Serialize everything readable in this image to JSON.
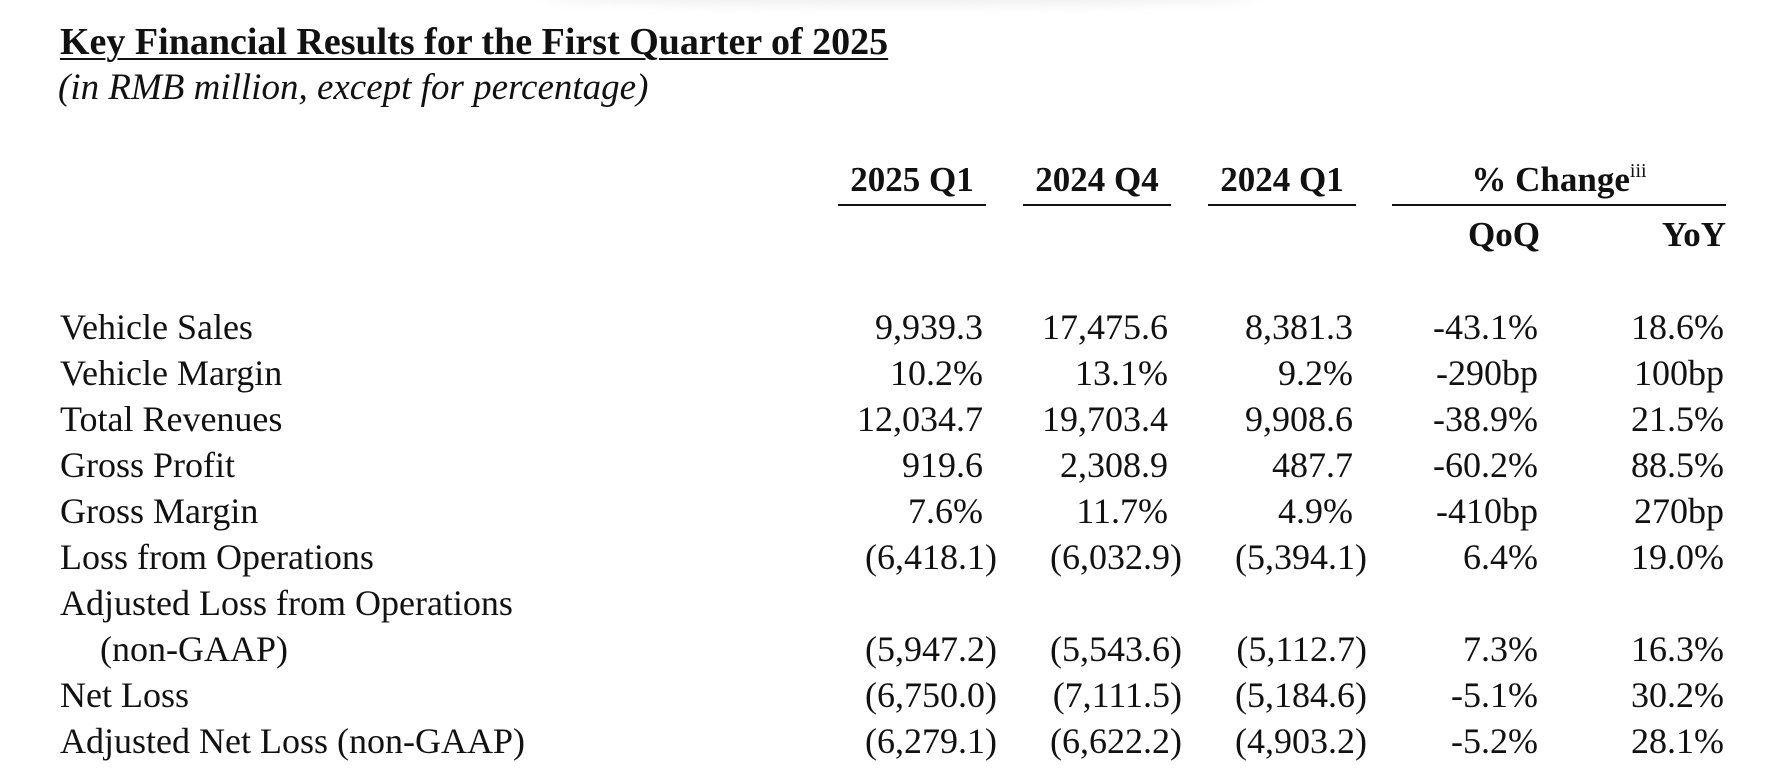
{
  "title": "Key Financial Results for the First Quarter of 2025",
  "subtitle": "(in RMB million, except for percentage)",
  "columns": {
    "c1": "2025 Q1",
    "c2": "2024 Q4",
    "c3": "2024 Q1",
    "change": "% Change",
    "change_note": "iii",
    "qoq": "QoQ",
    "yoy": "YoY"
  },
  "rows": [
    {
      "label": "Vehicle Sales",
      "c1": "9,939.3",
      "c2": "17,475.6",
      "c3": "8,381.3",
      "qoq": "-43.1%",
      "yoy": "18.6%"
    },
    {
      "label": "Vehicle Margin",
      "c1": "10.2%",
      "c2": "13.1%",
      "c3": "9.2%",
      "qoq": "-290bp",
      "yoy": "100bp"
    },
    {
      "label": "Total Revenues",
      "c1": "12,034.7",
      "c2": "19,703.4",
      "c3": "9,908.6",
      "qoq": "-38.9%",
      "yoy": "21.5%"
    },
    {
      "label": "Gross Profit",
      "c1": "919.6",
      "c2": "2,308.9",
      "c3": "487.7",
      "qoq": "-60.2%",
      "yoy": "88.5%"
    },
    {
      "label": "Gross Margin",
      "c1": "7.6%",
      "c2": "11.7%",
      "c3": "4.9%",
      "qoq": "-410bp",
      "yoy": "270bp"
    },
    {
      "label": "Loss from Operations",
      "c1": "(6,418.1)",
      "c2": "(6,032.9)",
      "c3": "(5,394.1)",
      "qoq": "6.4%",
      "yoy": "19.0%"
    },
    {
      "label": "Adjusted Loss from Operations",
      "label2": "(non-GAAP)",
      "c1": "(5,947.2)",
      "c2": "(5,543.6)",
      "c3": "(5,112.7)",
      "qoq": "7.3%",
      "yoy": "16.3%"
    },
    {
      "label": "Net Loss",
      "c1": "(6,750.0)",
      "c2": "(7,111.5)",
      "c3": "(5,184.6)",
      "qoq": "-5.1%",
      "yoy": "30.2%"
    },
    {
      "label": "Adjusted Net Loss (non-GAAP)",
      "c1": "(6,279.1)",
      "c2": "(6,622.2)",
      "c3": "(4,903.2)",
      "qoq": "-5.2%",
      "yoy": "28.1%"
    }
  ]
}
